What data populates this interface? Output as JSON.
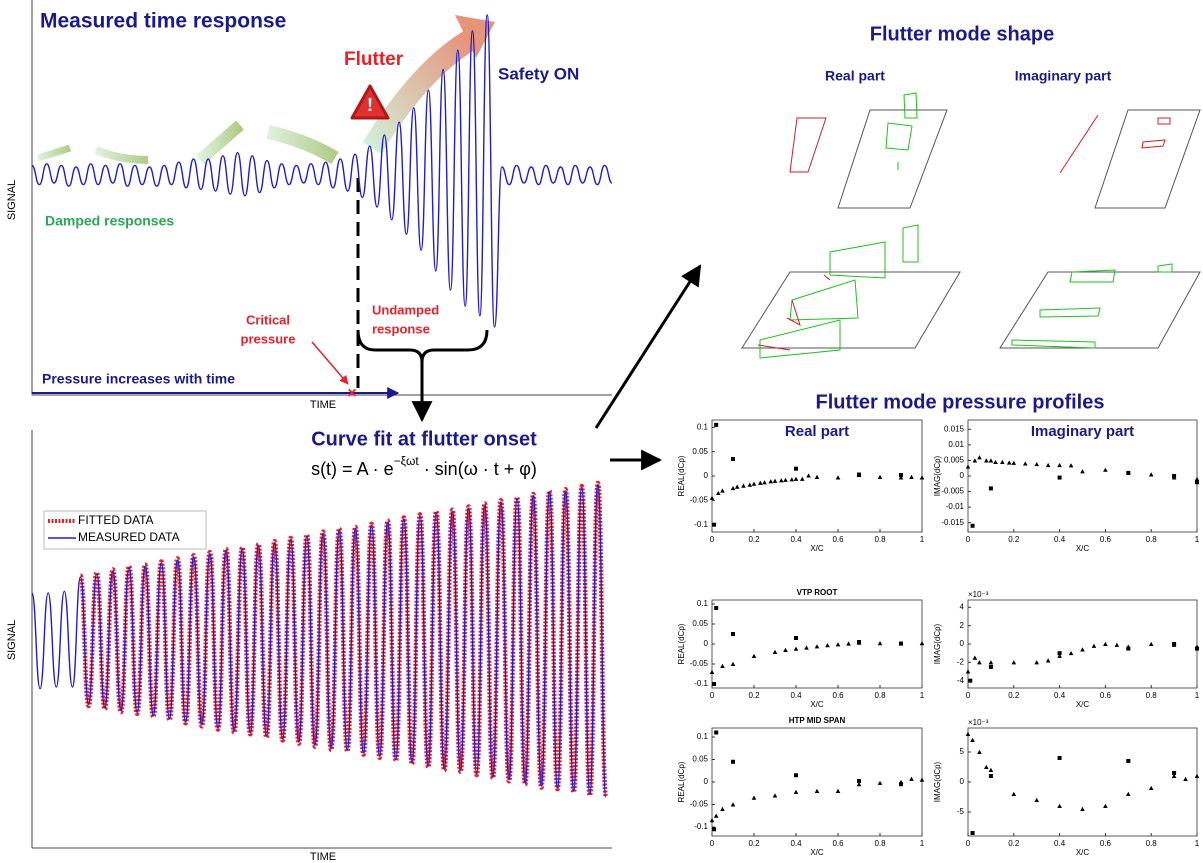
{
  "annotations": {
    "title": "Measured time response",
    "flutter": "Flutter",
    "safety": "Safety ON",
    "damped": "Damped responses",
    "critical": [
      "Critical",
      "pressure"
    ],
    "undamped": [
      "Undamped",
      "response"
    ],
    "pressure": "Pressure increases with time",
    "curve_fit": "Curve fit at flutter onset",
    "formula": [
      "s(t) = A · e",
      "−ξωt",
      " · sin(ω · t + φ)"
    ],
    "mode_shape": "Flutter mode shape",
    "real_part": "Real part",
    "imag_part": "Imaginary part",
    "profiles": "Flutter mode pressure profiles"
  },
  "chart_data": [
    {
      "type": "line",
      "xlabel": "TIME",
      "ylabel": "SIGNAL",
      "color": "#1f1fd0",
      "ylim": [
        -1,
        1
      ],
      "values": [
        0.06,
        -0.06,
        0.07,
        -0.05,
        0.06,
        -0.07,
        0.05,
        -0.06,
        0.07,
        -0.06,
        0.06,
        -0.05,
        0.07,
        -0.07,
        0.06,
        -0.06,
        0.05,
        -0.07,
        0.06,
        -0.06,
        0.08,
        -0.08,
        0.1,
        -0.09,
        0.1,
        -0.1,
        0.12,
        -0.12,
        0.14,
        -0.13,
        0.12,
        -0.11,
        0.09,
        -0.08,
        0.07,
        -0.06,
        0.06,
        -0.05,
        0.07,
        -0.06,
        0.08,
        -0.08,
        0.1,
        -0.1,
        0.13,
        -0.14,
        0.18,
        -0.2,
        0.25,
        -0.28,
        0.33,
        -0.37,
        0.42,
        -0.47,
        0.53,
        -0.6,
        0.66,
        -0.72,
        0.78,
        -0.82,
        0.9,
        -0.88,
        1.0,
        -0.95,
        0.05,
        -0.06,
        0.06,
        -0.05,
        0.05,
        -0.06,
        0.06,
        -0.05,
        0.05,
        -0.06,
        0.06,
        -0.05,
        0.05,
        -0.06,
        0.06,
        -0.05
      ]
    },
    {
      "type": "line",
      "xlabel": "TIME",
      "ylabel": "SIGNAL",
      "ylim": [
        -1,
        1
      ],
      "series": [
        {
          "name": "FITTED DATA",
          "color": "#e8202a",
          "line_style": "dotted",
          "values": [
            null,
            null,
            null,
            null,
            null,
            null,
            0.41,
            -0.42,
            0.43,
            -0.44,
            0.45,
            -0.46,
            0.47,
            -0.47,
            0.48,
            -0.49,
            0.5,
            -0.51,
            0.52,
            -0.53,
            0.54,
            -0.55,
            0.56,
            -0.57,
            0.58,
            -0.59,
            0.59,
            -0.6,
            0.61,
            -0.62,
            0.63,
            -0.64,
            0.65,
            -0.66,
            0.67,
            -0.68,
            0.69,
            -0.7,
            0.71,
            -0.71,
            0.72,
            -0.73,
            0.74,
            -0.75,
            0.76,
            -0.77,
            0.78,
            -0.79,
            0.8,
            -0.81,
            0.82,
            -0.83,
            0.83,
            -0.84,
            0.85,
            -0.86,
            0.87,
            -0.88,
            0.89,
            -0.9,
            0.91,
            -0.92,
            0.93,
            -0.94,
            0.95,
            -0.95,
            0.96,
            -0.97,
            0.98,
            -0.99,
            1.0,
            -1.0
          ]
        },
        {
          "name": "MEASURED DATA",
          "color": "#1f1fd0",
          "line_style": "solid",
          "values": [
            0.3,
            -0.31,
            0.3,
            -0.3,
            0.31,
            -0.3,
            0.4,
            -0.41,
            0.42,
            -0.43,
            0.44,
            -0.45,
            0.46,
            -0.46,
            0.47,
            -0.48,
            0.49,
            -0.5,
            0.51,
            -0.52,
            0.53,
            -0.54,
            0.55,
            -0.56,
            0.57,
            -0.58,
            0.58,
            -0.59,
            0.6,
            -0.61,
            0.62,
            -0.63,
            0.64,
            -0.65,
            0.66,
            -0.67,
            0.68,
            -0.69,
            0.7,
            -0.7,
            0.71,
            -0.72,
            0.73,
            -0.74,
            0.75,
            -0.76,
            0.77,
            -0.78,
            0.79,
            -0.8,
            0.81,
            -0.82,
            0.82,
            -0.83,
            0.84,
            -0.85,
            0.86,
            -0.87,
            0.88,
            -0.89,
            0.9,
            -0.91,
            0.92,
            -0.93,
            0.94,
            -0.94,
            0.95,
            -0.96,
            0.97,
            -0.98,
            0.99,
            -1.0
          ]
        }
      ]
    },
    {
      "type": "scatter",
      "title": "Real part",
      "xlabel": "X/C",
      "ylabel": "REAL(dCp)",
      "xlim": [
        0,
        1
      ],
      "ylim": [
        -0.115,
        0.115
      ],
      "xticks": [
        0,
        0.2,
        0.4,
        0.6,
        0.8,
        1
      ],
      "yticks": [
        0.1,
        0.05,
        0,
        -0.05,
        -0.1
      ],
      "series": [
        {
          "marker": "triangle",
          "color": "#000000",
          "x": [
            0,
            0.03,
            0.05,
            0.1,
            0.12,
            0.15,
            0.18,
            0.2,
            0.23,
            0.25,
            0.28,
            0.3,
            0.33,
            0.35,
            0.38,
            0.4,
            0.43,
            0.46,
            0.5,
            0.6,
            0.7,
            0.8,
            0.9,
            0.95,
            1.0
          ],
          "values": [
            -0.045,
            -0.035,
            -0.03,
            -0.025,
            -0.022,
            -0.02,
            -0.018,
            -0.016,
            -0.014,
            -0.013,
            -0.011,
            -0.01,
            -0.009,
            -0.008,
            -0.007,
            -0.006,
            -0.006,
            0.001,
            -0.002,
            -0.003,
            0.002,
            -0.002,
            -0.003,
            -0.002,
            -0.003
          ]
        },
        {
          "marker": "square",
          "color": "#000000",
          "x": [
            0.02,
            0.1,
            0.4,
            0.7,
            0.9,
            0.01
          ],
          "values": [
            0.105,
            0.035,
            0.015,
            0.003,
            0.002,
            -0.1
          ]
        }
      ]
    },
    {
      "type": "scatter",
      "title": "Imaginary part",
      "xlabel": "X/C",
      "ylabel": "IMAG(dCp)",
      "xlim": [
        0,
        1
      ],
      "ylim": [
        -0.018,
        0.018
      ],
      "xticks": [
        0,
        0.2,
        0.4,
        0.6,
        0.8,
        1
      ],
      "yticks": [
        0.015,
        0.01,
        0.005,
        0,
        -0.005,
        -0.01,
        -0.015
      ],
      "series": [
        {
          "marker": "triangle",
          "color": "#000000",
          "x": [
            0,
            0.03,
            0.05,
            0.08,
            0.1,
            0.12,
            0.15,
            0.18,
            0.2,
            0.25,
            0.3,
            0.35,
            0.4,
            0.45,
            0.5,
            0.6,
            0.7,
            0.8,
            0.9,
            1.0
          ],
          "values": [
            0.003,
            0.005,
            0.006,
            0.005,
            0.005,
            0.0045,
            0.0045,
            0.0043,
            0.0042,
            0.004,
            0.0038,
            0.0035,
            0.0035,
            0.0034,
            0.0015,
            0.002,
            0.001,
            0.0005,
            -0.0005,
            -0.001
          ]
        },
        {
          "marker": "square",
          "color": "#000000",
          "x": [
            0.02,
            0.1,
            0.4,
            0.7,
            0.9,
            1.0
          ],
          "values": [
            -0.016,
            -0.004,
            -0.0005,
            0.001,
            0,
            -0.002
          ]
        }
      ]
    },
    {
      "type": "scatter",
      "title": "VTP ROOT",
      "xlabel": "X/C",
      "ylabel": "REAL(dCp)",
      "xlim": [
        0,
        1
      ],
      "ylim": [
        -0.11,
        0.11
      ],
      "xticks": [
        0,
        0.2,
        0.4,
        0.6,
        0.8,
        1
      ],
      "yticks": [
        0.1,
        0.05,
        0,
        -0.05,
        -0.1
      ],
      "series": [
        {
          "marker": "triangle",
          "color": "#000000",
          "x": [
            0,
            0.05,
            0.1,
            0.2,
            0.3,
            0.35,
            0.4,
            0.45,
            0.5,
            0.55,
            0.6,
            0.65,
            0.7,
            0.8,
            0.9,
            1.0
          ],
          "values": [
            -0.07,
            -0.055,
            -0.05,
            -0.03,
            -0.02,
            -0.015,
            -0.012,
            -0.009,
            -0.006,
            -0.003,
            -0.001,
            0.001,
            0.003,
            0.002,
            0.002,
            0.002
          ]
        },
        {
          "marker": "square",
          "color": "#000000",
          "x": [
            0.02,
            0.1,
            0.4,
            0.7,
            0.9,
            0.01
          ],
          "values": [
            0.09,
            0.025,
            0.015,
            0.005,
            0.001,
            -0.1
          ]
        }
      ]
    },
    {
      "type": "scatter",
      "xlabel": "X/C",
      "ylabel": "IMAG(dCp)",
      "y_multiplier": "×10⁻³",
      "xlim": [
        0,
        1
      ],
      "ylim": [
        -4.8,
        4.8
      ],
      "xticks": [
        0,
        0.2,
        0.4,
        0.6,
        0.8,
        1
      ],
      "yticks": [
        4,
        2,
        0,
        -2,
        -4
      ],
      "series": [
        {
          "marker": "triangle",
          "color": "#000000",
          "x": [
            0,
            0.03,
            0.05,
            0.1,
            0.2,
            0.3,
            0.35,
            0.4,
            0.45,
            0.5,
            0.55,
            0.6,
            0.65,
            0.7,
            0.8,
            0.9,
            1.0
          ],
          "values": [
            -3,
            -1.5,
            -2,
            -2,
            -2,
            -2,
            -1.8,
            -1.3,
            -1,
            -0.6,
            -0.2,
            0,
            -0.1,
            -0.3,
            0,
            -0.1,
            -0.3
          ]
        },
        {
          "marker": "square",
          "color": "#000000",
          "x": [
            0.01,
            0.1,
            0.4,
            0.7,
            0.9,
            1.0
          ],
          "values": [
            -4,
            -2.5,
            -1,
            -0.5,
            0,
            -0.5
          ]
        }
      ]
    },
    {
      "type": "scatter",
      "title": "HTP MID SPAN",
      "xlabel": "X/C",
      "ylabel": "REAL(dCp)",
      "xlim": [
        0,
        1
      ],
      "ylim": [
        -0.12,
        0.12
      ],
      "xticks": [
        0,
        0.2,
        0.4,
        0.6,
        0.8,
        1
      ],
      "yticks": [
        0.1,
        0.05,
        0,
        -0.05,
        -0.1
      ],
      "series": [
        {
          "marker": "triangle",
          "color": "#000000",
          "x": [
            0,
            0.02,
            0.05,
            0.1,
            0.2,
            0.3,
            0.4,
            0.5,
            0.6,
            0.7,
            0.8,
            0.9,
            0.95,
            1.0
          ],
          "values": [
            -0.085,
            -0.075,
            -0.06,
            -0.05,
            -0.035,
            -0.03,
            -0.022,
            -0.02,
            -0.02,
            -0.005,
            -0.002,
            0,
            0.007,
            0.005
          ]
        },
        {
          "marker": "square",
          "color": "#000000",
          "x": [
            0.01,
            0.02,
            0.1,
            0.4,
            0.7,
            0.9
          ],
          "values": [
            -0.105,
            0.11,
            0.045,
            0.015,
            0.002,
            -0.005
          ]
        }
      ]
    },
    {
      "type": "scatter",
      "xlabel": "X/C",
      "ylabel": "IMAG(dCp)",
      "y_multiplier": "×10⁻³",
      "xlim": [
        0,
        1
      ],
      "ylim": [
        -9,
        9
      ],
      "xticks": [
        0,
        0.2,
        0.4,
        0.6,
        0.8,
        1
      ],
      "yticks": [
        5,
        0,
        -5
      ],
      "series": [
        {
          "marker": "triangle",
          "color": "#000000",
          "x": [
            0,
            0.02,
            0.05,
            0.08,
            0.1,
            0.2,
            0.3,
            0.4,
            0.5,
            0.6,
            0.7,
            0.8,
            0.9,
            0.95,
            1.0
          ],
          "values": [
            8,
            7,
            5,
            2.5,
            2,
            -2,
            -3,
            -4,
            -4.5,
            -4,
            -2,
            -1,
            1,
            0.5,
            1
          ]
        },
        {
          "marker": "square",
          "color": "#000000",
          "x": [
            0.02,
            0.1,
            0.4,
            0.7,
            0.9
          ],
          "values": [
            -8.5,
            1,
            4,
            3.5,
            1.5
          ]
        }
      ]
    }
  ]
}
